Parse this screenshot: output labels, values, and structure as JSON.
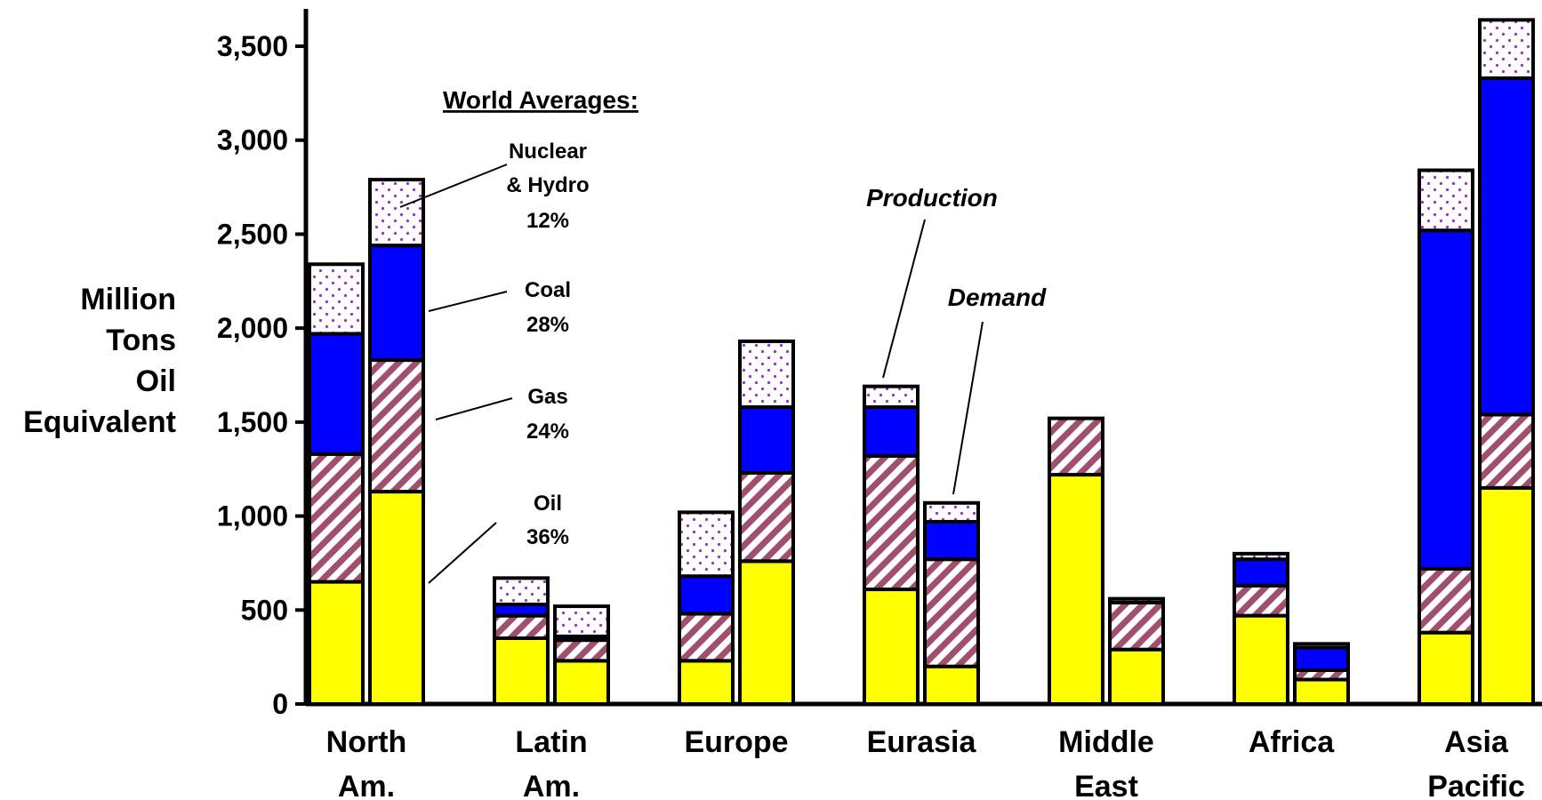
{
  "chart_data": {
    "type": "bar",
    "stacked": true,
    "ylabel": [
      "Million",
      "Tons",
      "Oil",
      "Equivalent"
    ],
    "ylim": [
      0,
      3600
    ],
    "yticks": [
      0,
      500,
      1000,
      1500,
      2000,
      2500,
      3000,
      3500
    ],
    "ytick_labels": [
      "0",
      "500",
      "1,000",
      "1,500",
      "2,000",
      "2,500",
      "3,000",
      "3,500"
    ],
    "grid": false,
    "categories": [
      [
        "North",
        "Am."
      ],
      [
        "Latin",
        "Am."
      ],
      [
        "Europe"
      ],
      [
        "Eurasia"
      ],
      [
        "Middle",
        "East"
      ],
      [
        "Africa"
      ],
      [
        "Asia",
        "Pacific"
      ]
    ],
    "bar_pair_labels": [
      "Production",
      "Demand"
    ],
    "series": [
      {
        "name": "Oil",
        "color": "#ffff00",
        "pattern": "solid",
        "production": [
          650,
          350,
          230,
          610,
          1220,
          470,
          380
        ],
        "demand": [
          1130,
          230,
          760,
          200,
          290,
          130,
          1150
        ]
      },
      {
        "name": "Gas",
        "color": "#a0506e",
        "pattern": "hatch",
        "production": [
          680,
          120,
          250,
          710,
          300,
          160,
          340
        ],
        "demand": [
          700,
          110,
          470,
          570,
          250,
          50,
          390
        ]
      },
      {
        "name": "Coal",
        "color": "#0000ff",
        "pattern": "solid",
        "production": [
          640,
          60,
          200,
          260,
          0,
          140,
          1800
        ],
        "demand": [
          610,
          20,
          350,
          200,
          0,
          120,
          1790
        ]
      },
      {
        "name": "Nuclear & Hydro",
        "color": "#9933cc",
        "pattern": "dots",
        "production": [
          370,
          140,
          340,
          110,
          0,
          30,
          320
        ],
        "demand": [
          350,
          160,
          350,
          100,
          20,
          20,
          310
        ]
      }
    ],
    "annotations": {
      "world_averages_title": "World Averages:",
      "items": [
        {
          "lines": [
            "Nuclear",
            "& Hydro",
            "12%"
          ]
        },
        {
          "lines": [
            "Coal",
            "28%"
          ]
        },
        {
          "lines": [
            "Gas",
            "24%"
          ]
        },
        {
          "lines": [
            "Oil",
            "36%"
          ]
        }
      ]
    }
  }
}
